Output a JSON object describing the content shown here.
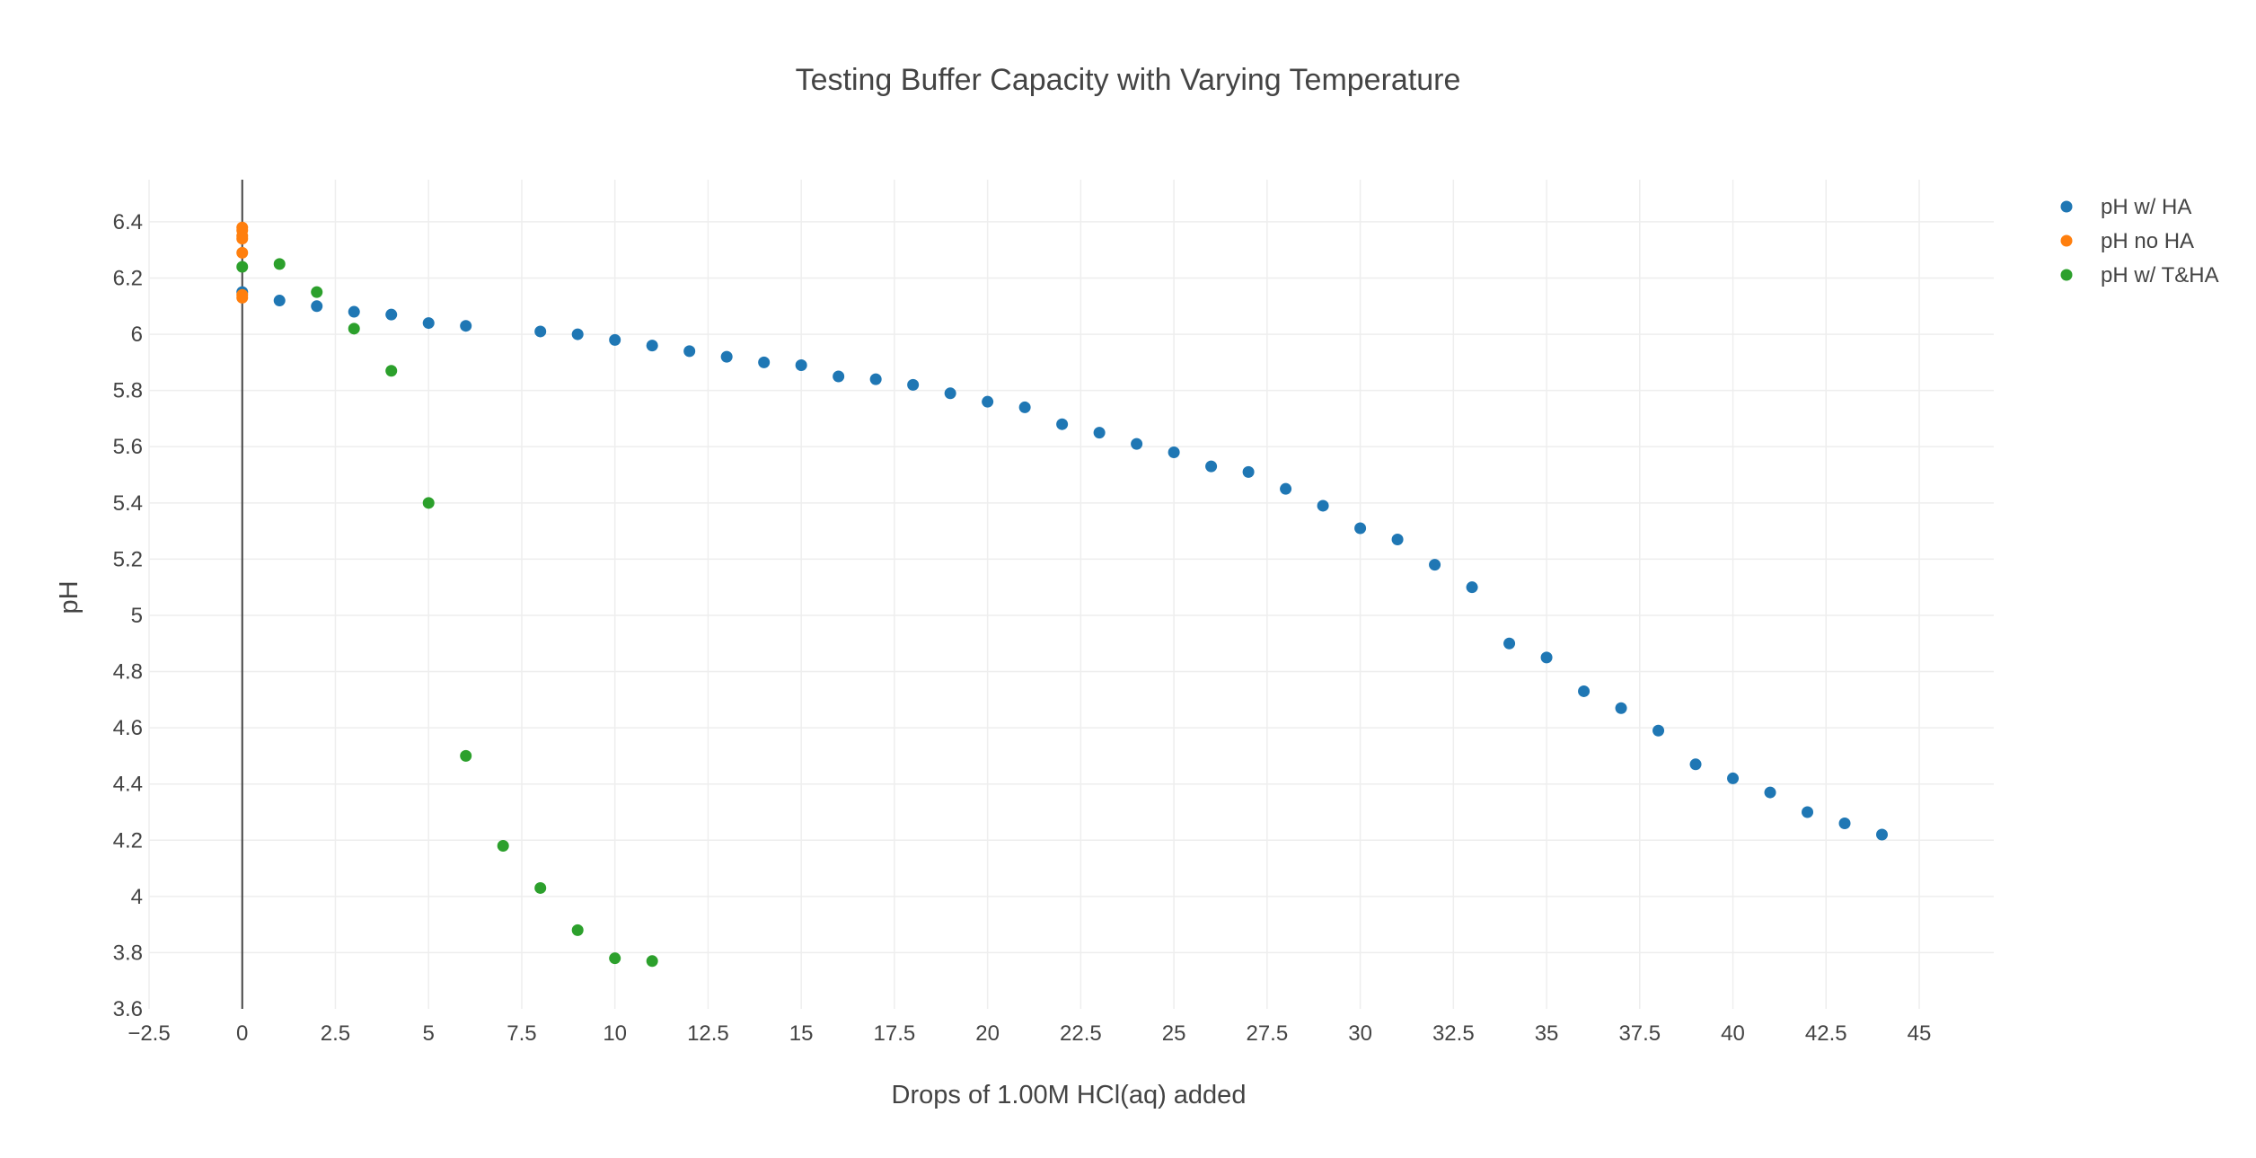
{
  "chart_data": {
    "type": "scatter",
    "title": "Testing Buffer Capacity with Varying Temperature",
    "xlabel": "Drops of 1.00M HCl(aq) added",
    "ylabel": "pH",
    "xlim": [
      -2.5,
      47
    ],
    "ylim": [
      3.6,
      6.55
    ],
    "x_ticks": [
      -2.5,
      0,
      2.5,
      5,
      7.5,
      10,
      12.5,
      15,
      17.5,
      20,
      22.5,
      25,
      27.5,
      30,
      32.5,
      35,
      37.5,
      40,
      42.5,
      45
    ],
    "x_tick_labels": [
      "−2.5",
      "0",
      "2.5",
      "5",
      "7.5",
      "10",
      "12.5",
      "15",
      "17.5",
      "20",
      "22.5",
      "25",
      "27.5",
      "30",
      "32.5",
      "35",
      "37.5",
      "40",
      "42.5",
      "45"
    ],
    "y_ticks": [
      3.6,
      3.8,
      4,
      4.2,
      4.4,
      4.6,
      4.8,
      5,
      5.2,
      5.4,
      5.6,
      5.8,
      6,
      6.2,
      6.4
    ],
    "y_tick_labels": [
      "3.6",
      "3.8",
      "4",
      "4.2",
      "4.4",
      "4.6",
      "4.8",
      "5",
      "5.2",
      "5.4",
      "5.6",
      "5.8",
      "6",
      "6.2",
      "6.4"
    ],
    "grid": true,
    "legend_position": "top-right",
    "series": [
      {
        "name": "pH w/ HA",
        "color": "#1f77b4",
        "x": [
          0,
          1,
          2,
          3,
          4,
          5,
          6,
          8,
          9,
          10,
          11,
          12,
          13,
          14,
          15,
          16,
          17,
          18,
          19,
          20,
          21,
          22,
          23,
          24,
          25,
          26,
          27,
          28,
          29,
          30,
          31,
          32,
          33,
          34,
          35,
          36,
          37,
          38,
          39,
          40,
          41,
          42,
          43,
          44
        ],
        "y": [
          6.15,
          6.12,
          6.1,
          6.08,
          6.07,
          6.04,
          6.03,
          6.01,
          6.0,
          5.98,
          5.96,
          5.94,
          5.92,
          5.9,
          5.89,
          5.85,
          5.84,
          5.82,
          5.79,
          5.76,
          5.74,
          5.68,
          5.65,
          5.61,
          5.58,
          5.53,
          5.51,
          5.45,
          5.39,
          5.31,
          5.27,
          5.18,
          5.1,
          4.9,
          4.85,
          4.73,
          4.67,
          4.59,
          4.47,
          4.42,
          4.37,
          4.3,
          4.26,
          4.22
        ]
      },
      {
        "name": "pH no HA",
        "color": "#ff7f0e",
        "x": [
          0,
          0,
          0,
          0,
          0,
          0,
          0
        ],
        "y": [
          6.38,
          6.37,
          6.35,
          6.34,
          6.29,
          6.14,
          6.13
        ]
      },
      {
        "name": "pH w/ T&HA",
        "color": "#2ca02c",
        "x": [
          0,
          1,
          2,
          3,
          4,
          5,
          6,
          7,
          8,
          9,
          10,
          11
        ],
        "y": [
          6.24,
          6.25,
          6.15,
          6.02,
          5.87,
          5.4,
          4.5,
          4.18,
          4.03,
          3.88,
          3.78,
          3.77
        ]
      }
    ]
  }
}
